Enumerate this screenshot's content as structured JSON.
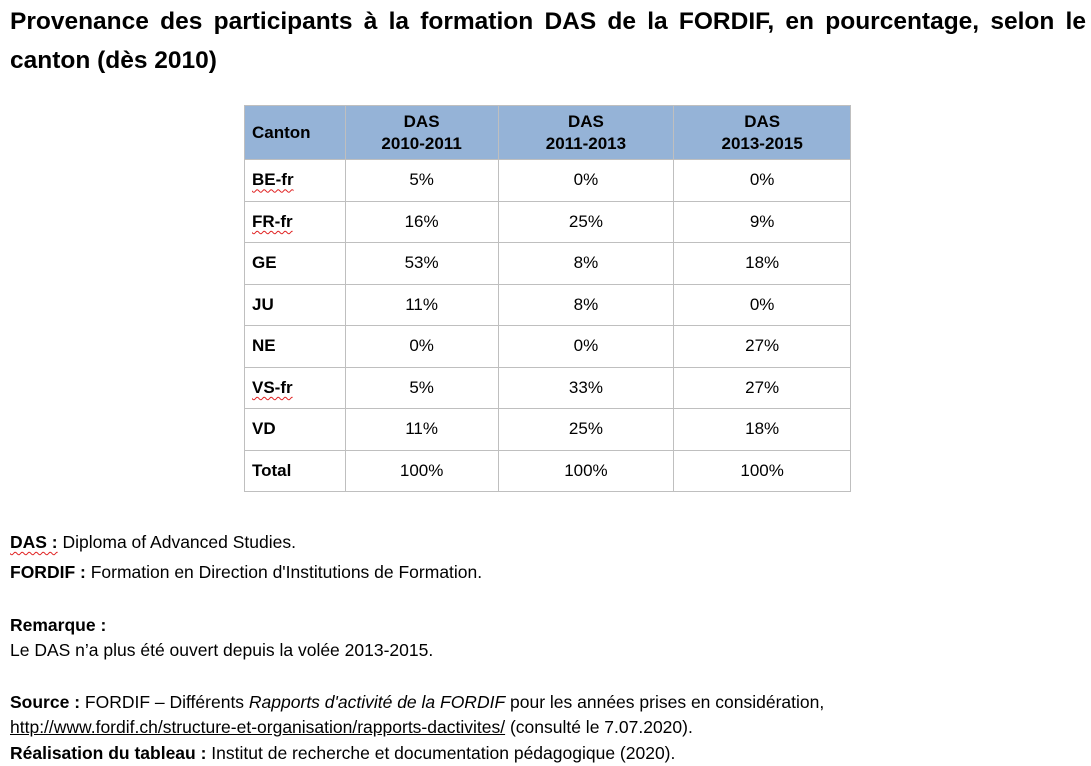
{
  "title": "Provenance des participants à la formation DAS de la FORDIF, en pourcentage, selon le canton (dès 2010)",
  "table": {
    "header": {
      "canton": "Canton",
      "columns": [
        {
          "line1": "DAS",
          "line2": "2010-2011"
        },
        {
          "line1": "DAS",
          "line2": "2011-2013"
        },
        {
          "line1": "DAS",
          "line2": "2013-2015"
        }
      ]
    },
    "rows": [
      {
        "canton": "BE-fr",
        "values": [
          "5%",
          "0%",
          "0%"
        ]
      },
      {
        "canton": "FR-fr",
        "values": [
          "16%",
          "25%",
          "9%"
        ]
      },
      {
        "canton": "GE",
        "values": [
          "53%",
          "8%",
          "18%"
        ]
      },
      {
        "canton": "JU",
        "values": [
          "11%",
          "8%",
          "0%"
        ]
      },
      {
        "canton": "NE",
        "values": [
          "0%",
          "0%",
          "27%"
        ]
      },
      {
        "canton": "VS-fr",
        "values": [
          "5%",
          "33%",
          "27%"
        ]
      },
      {
        "canton": "VD",
        "values": [
          "11%",
          "25%",
          "18%"
        ]
      },
      {
        "canton": "Total",
        "values": [
          "100%",
          "100%",
          "100%"
        ]
      }
    ]
  },
  "notes": {
    "das": {
      "term": "DAS :",
      "text": " Diploma of Advanced Studies."
    },
    "fordif": {
      "term": "FORDIF :",
      "text": " Formation en Direction d'Institutions de Formation."
    },
    "remark": {
      "heading": "Remarque :",
      "text": "Le DAS n’a plus été ouvert depuis la volée 2013-2015."
    },
    "source": {
      "label": "Source :",
      "text_before": " FORDIF – Différents ",
      "italic_title": "Rapports d'activité de la FORDIF",
      "text_after": " pour les années prises en considération,",
      "url": "http://www.fordif.ch/structure-et-organisation/rapports-dactivites/",
      "consulted": " (consulté le 7.07.2020)."
    },
    "realisation": {
      "label": "Réalisation du tableau :",
      "text": " Institut de recherche et documentation pédagogique (2020)."
    }
  }
}
